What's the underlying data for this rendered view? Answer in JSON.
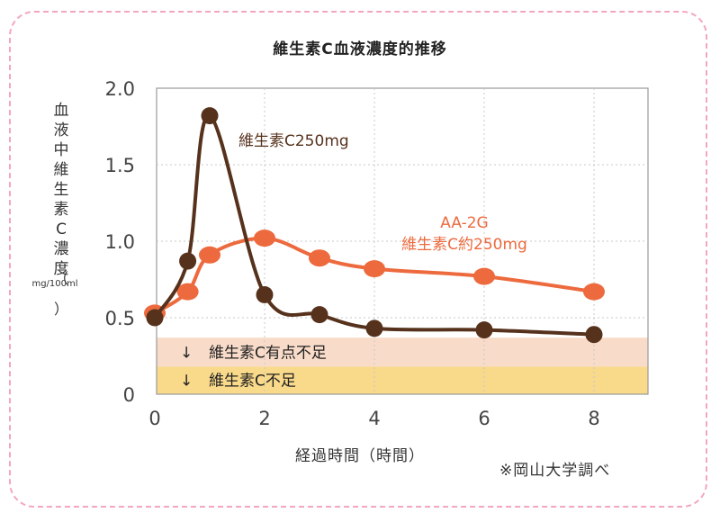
{
  "chart_data": {
    "type": "line",
    "title": "維生素C血液濃度的推移",
    "xlabel": "経過時間（時間）",
    "ylabel": "血液中維生素C濃度",
    "ylabel_unit": "mg/100ml",
    "x_ticks": [
      0,
      2,
      4,
      6,
      8
    ],
    "y_ticks": [
      0,
      0.5,
      1.0,
      1.5,
      2.0
    ],
    "y_tick_labels": [
      "0",
      "0.5",
      "1.0",
      "1.5",
      "2.0"
    ],
    "xlim": [
      0,
      9
    ],
    "ylim": [
      0,
      2.0
    ],
    "series": [
      {
        "name": "維生素C250mg",
        "color": "#56321d",
        "x": [
          0,
          0.6,
          1,
          2,
          3,
          4,
          6,
          8
        ],
        "y": [
          0.5,
          0.87,
          1.82,
          0.65,
          0.52,
          0.43,
          0.42,
          0.39
        ]
      },
      {
        "name": "AA-2G 維生素C約250mg",
        "label_lines": [
          "AA-2G",
          "維生素C約250mg"
        ],
        "color": "#ed6a3e",
        "x": [
          0,
          0.6,
          1,
          2,
          3,
          4,
          6,
          8
        ],
        "y": [
          0.53,
          0.67,
          0.91,
          1.02,
          0.89,
          0.82,
          0.77,
          0.67
        ]
      }
    ],
    "bands": [
      {
        "label": "維生素C有点不足",
        "y_range": [
          0.18,
          0.37
        ],
        "color": "#f8dcc9"
      },
      {
        "label": "維生素C不足",
        "y_range": [
          0,
          0.18
        ],
        "color": "#f9d98a"
      }
    ],
    "band_arrow": "↓",
    "source": "※岡山大学調べ"
  }
}
